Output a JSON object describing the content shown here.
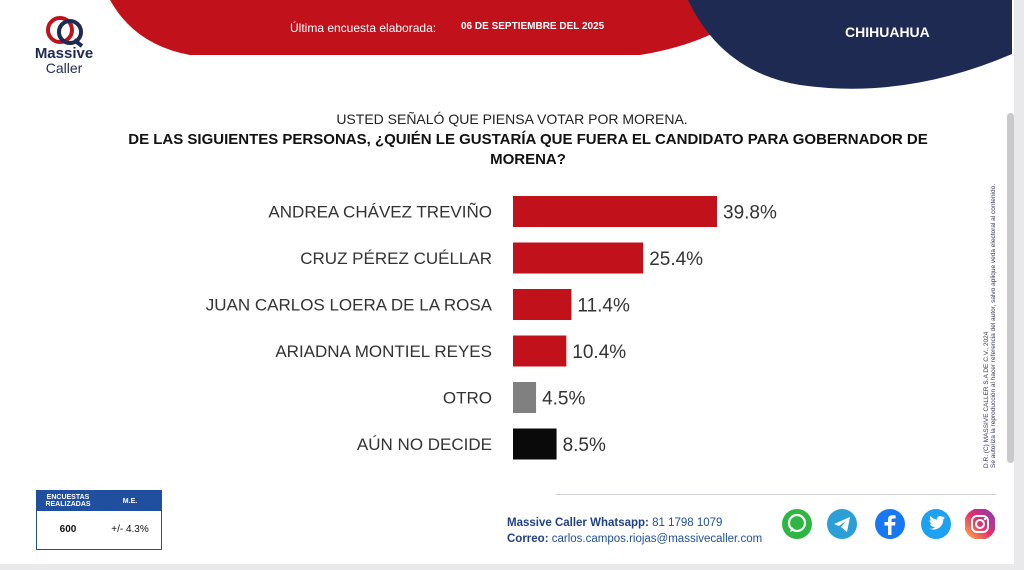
{
  "header": {
    "brand_line1": "Massive",
    "brand_line2": "Caller",
    "survey_label": "Última encuesta elaborada:",
    "survey_date": "06 DE SEPTIEMBRE DEL 2025",
    "state": "CHIHUAHUA",
    "colors": {
      "red": "#c1121c",
      "navy": "#1e2a52"
    }
  },
  "question": {
    "line1": "USTED SEÑALÓ QUE PIENSA VOTAR POR MORENA.",
    "line2": "DE LAS SIGUIENTES PERSONAS, ¿QUIÉN LE GUSTARÍA QUE FUERA EL CANDIDATO PARA GOBERNADOR DE MORENA?"
  },
  "chart_data": {
    "type": "bar",
    "orientation": "horizontal",
    "categories": [
      "ANDREA CHÁVEZ TREVIÑO",
      "CRUZ PÉREZ CUÉLLAR",
      "JUAN CARLOS LOERA DE LA ROSA",
      "ARIADNA MONTIEL REYES",
      "OTRO",
      "AÚN NO DECIDE"
    ],
    "values": [
      39.8,
      25.4,
      11.4,
      10.4,
      4.5,
      8.5
    ],
    "labels": [
      "39.8%",
      "25.4%",
      "11.4%",
      "10.4%",
      "4.5%",
      "8.5%"
    ],
    "colors": [
      "#c1121c",
      "#c1121c",
      "#c1121c",
      "#c1121c",
      "#808080",
      "#0a0a0a"
    ],
    "xlim": [
      0,
      39.8
    ],
    "grid": false,
    "legend": "none"
  },
  "side_note": {
    "line1": "D.R. (C) MASSIVE CALLER S.A DE C.V., 2024",
    "line2": "Se autoriza la reproducción al hacer referencia del autor, salvo aplique veda electoral al contenido."
  },
  "stats": {
    "col1_header": "ENCUESTAS REALIZADAS",
    "col2_header": "M.E.",
    "col1_value": "600",
    "col2_value": "+/- 4.3%"
  },
  "contact": {
    "whatsapp_label": "Massive Caller Whatsapp:",
    "whatsapp_value": "81 1798 1079",
    "email_label": "Correo:",
    "email_value": "carlos.campos.riojas@massivecaller.com"
  },
  "social_icons": [
    "whatsapp-icon",
    "telegram-icon",
    "facebook-icon",
    "twitter-icon",
    "instagram-icon"
  ]
}
